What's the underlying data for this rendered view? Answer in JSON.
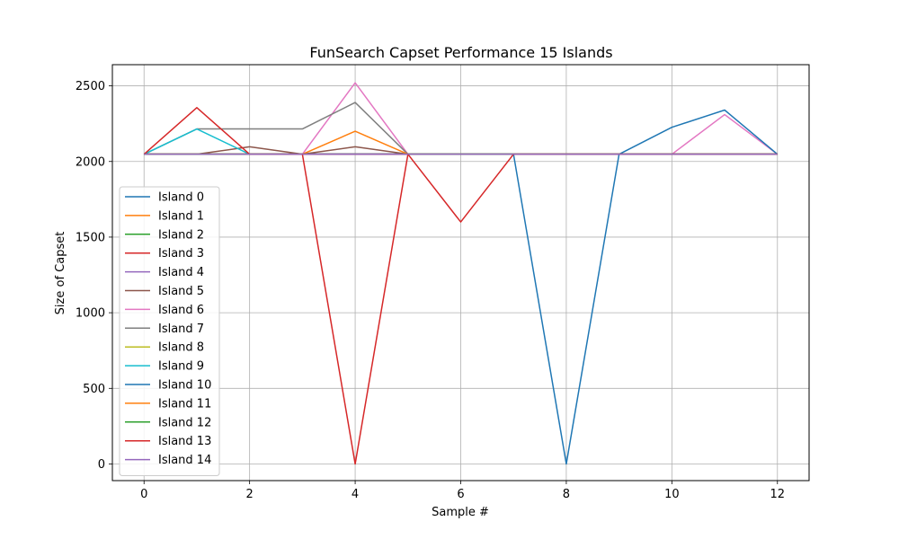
{
  "chart_data": {
    "type": "line",
    "title": "FunSearch Capset Performance 15 Islands",
    "xlabel": "Sample #",
    "ylabel": "Size of Capset",
    "xlim": [
      -0.6,
      12.6
    ],
    "ylim": [
      -110,
      2640
    ],
    "xticks": [
      0,
      2,
      4,
      6,
      8,
      10,
      12
    ],
    "yticks": [
      0,
      500,
      1000,
      1500,
      2000,
      2500
    ],
    "grid": true,
    "legend_position": "lower-left",
    "x": [
      0,
      1,
      2,
      3,
      4,
      5,
      6,
      7,
      8,
      9,
      10,
      11,
      12
    ],
    "series": [
      {
        "name": "Island 0",
        "color": "#1f77b4",
        "values": [
          2048,
          2048,
          2048,
          2048,
          2048,
          2048,
          2048,
          2048,
          2048,
          2048,
          2048,
          2048,
          2048
        ]
      },
      {
        "name": "Island 1",
        "color": "#ff7f0e",
        "values": [
          2048,
          2048,
          2048,
          2048,
          2048,
          2048,
          2048,
          2048,
          2048,
          2048,
          2048,
          2048,
          2048
        ]
      },
      {
        "name": "Island 2",
        "color": "#2ca02c",
        "values": [
          2048,
          2048,
          2048,
          2048,
          2048,
          2048,
          2048,
          2048,
          2048,
          2048,
          2048,
          2048,
          2048
        ]
      },
      {
        "name": "Island 3",
        "color": "#d62728",
        "values": [
          2048,
          2048,
          2048,
          2048,
          0,
          2048,
          2048,
          2048,
          2048,
          2048,
          2048,
          2048,
          2048
        ]
      },
      {
        "name": "Island 4",
        "color": "#9467bd",
        "values": [
          2048,
          2048,
          2048,
          2048,
          2048,
          2048,
          2048,
          2048,
          2048,
          2048,
          2048,
          2048,
          2048
        ]
      },
      {
        "name": "Island 5",
        "color": "#8c564b",
        "values": [
          2048,
          2048,
          2097,
          2048,
          2097,
          2048,
          2048,
          2048,
          2048,
          2048,
          2048,
          2048,
          2048
        ]
      },
      {
        "name": "Island 6",
        "color": "#e377c2",
        "values": [
          2048,
          2048,
          2048,
          2048,
          2520,
          2048,
          2048,
          2048,
          2048,
          2048,
          2048,
          2310,
          2048
        ]
      },
      {
        "name": "Island 7",
        "color": "#7f7f7f",
        "values": [
          2048,
          2215,
          2215,
          2215,
          2390,
          2048,
          2048,
          2048,
          2048,
          2048,
          2048,
          2048,
          2048
        ]
      },
      {
        "name": "Island 8",
        "color": "#bcbd22",
        "values": [
          2048,
          2048,
          2048,
          2048,
          2048,
          2048,
          2048,
          2048,
          2048,
          2048,
          2048,
          2048,
          2048
        ]
      },
      {
        "name": "Island 9",
        "color": "#17becf",
        "values": [
          2048,
          2215,
          2048,
          2048,
          2048,
          2048,
          2048,
          2048,
          2048,
          2048,
          2048,
          2048,
          2048
        ]
      },
      {
        "name": "Island 10",
        "color": "#1f77b4",
        "values": [
          2048,
          2048,
          2048,
          2048,
          2048,
          2048,
          2048,
          2048,
          0,
          2048,
          2226,
          2340,
          2048
        ]
      },
      {
        "name": "Island 11",
        "color": "#ff7f0e",
        "values": [
          2048,
          2048,
          2048,
          2048,
          2200,
          2048,
          2048,
          2048,
          2048,
          2048,
          2048,
          2048,
          2048
        ]
      },
      {
        "name": "Island 12",
        "color": "#2ca02c",
        "values": [
          2048,
          2048,
          2048,
          2048,
          2048,
          2048,
          2048,
          2048,
          2048,
          2048,
          2048,
          2048,
          2048
        ]
      },
      {
        "name": "Island 13",
        "color": "#d62728",
        "values": [
          2048,
          2356,
          2048,
          2048,
          2048,
          2048,
          1600,
          2048,
          2048,
          2048,
          2048,
          2048,
          2048
        ]
      },
      {
        "name": "Island 14",
        "color": "#9467bd",
        "values": [
          2048,
          2048,
          2048,
          2048,
          2048,
          2048,
          2048,
          2048,
          2048,
          2048,
          2048,
          2048,
          2048
        ]
      }
    ]
  }
}
